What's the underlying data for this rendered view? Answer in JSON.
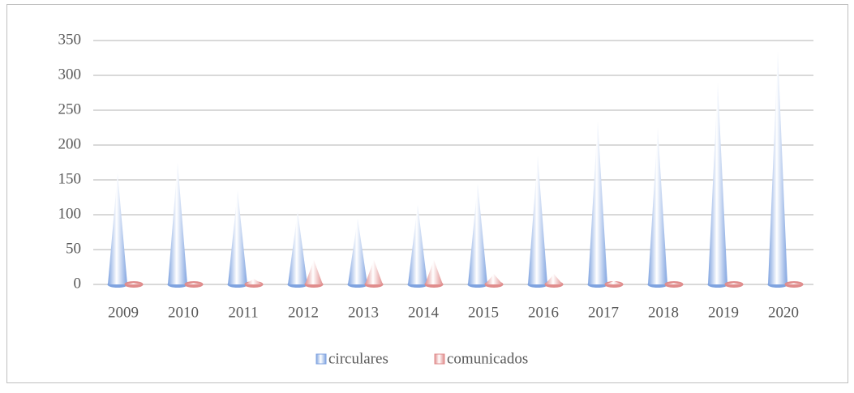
{
  "chart_data": {
    "type": "cone",
    "categories": [
      "2009",
      "2010",
      "2011",
      "2012",
      "2013",
      "2014",
      "2015",
      "2016",
      "2017",
      "2018",
      "2019",
      "2020"
    ],
    "series": [
      {
        "name": "circulares",
        "color": "#7fa3e0",
        "values": [
          160,
          175,
          135,
          105,
          95,
          115,
          145,
          185,
          235,
          225,
          290,
          335
        ]
      },
      {
        "name": "comunicados",
        "color": "#e08c8c",
        "values": [
          2,
          2,
          8,
          35,
          35,
          35,
          15,
          15,
          5,
          2,
          2,
          2
        ]
      }
    ],
    "ylim": [
      0,
      350
    ],
    "yticks": [
      0,
      50,
      100,
      150,
      200,
      250,
      300,
      350
    ],
    "grid": true,
    "legend": "bottom"
  }
}
